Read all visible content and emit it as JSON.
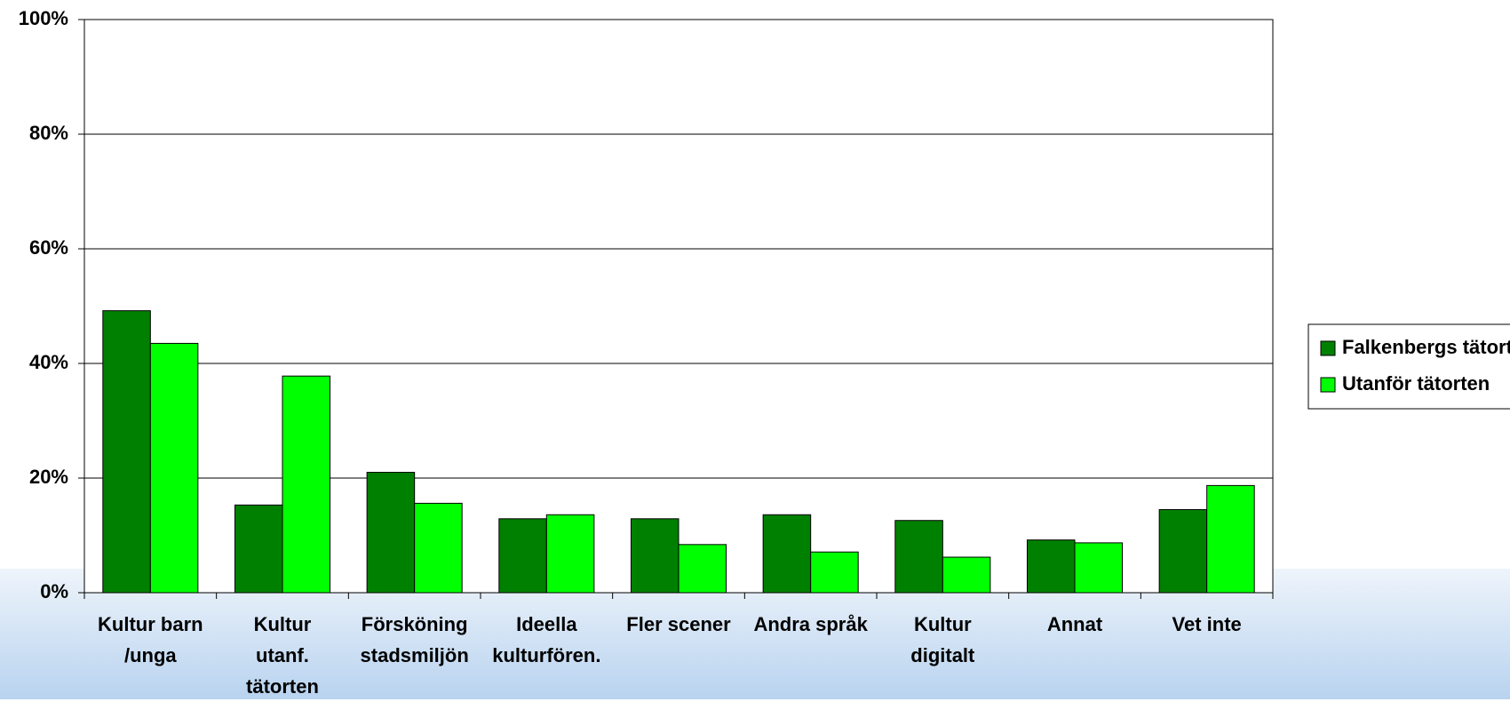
{
  "chart_data": {
    "type": "bar",
    "categories": [
      "Kultur barn\n/unga",
      "Kultur\nutanf.\ntätorten",
      "Försköning\nstadsmiljön",
      "Ideella\nkulturfören.",
      "Fler scener",
      "Andra språk",
      "Kultur\ndigitalt",
      "Annat",
      "Vet inte"
    ],
    "series": [
      {
        "name": "Falkenbergs tätort",
        "color": "#008000",
        "values": [
          49.2,
          15.3,
          21.0,
          12.9,
          12.9,
          13.6,
          12.6,
          9.2,
          14.5
        ]
      },
      {
        "name": "Utanför tätorten",
        "color": "#00ff00",
        "values": [
          43.5,
          37.8,
          15.6,
          13.6,
          8.4,
          7.1,
          6.2,
          8.7,
          18.7
        ]
      }
    ],
    "ylim": [
      0,
      100
    ],
    "yticks": [
      {
        "value": 0,
        "label": "0%"
      },
      {
        "value": 20,
        "label": "20%"
      },
      {
        "value": 40,
        "label": "40%"
      },
      {
        "value": 60,
        "label": "60%"
      },
      {
        "value": 80,
        "label": "80%"
      },
      {
        "value": 100,
        "label": "100%"
      }
    ],
    "grid": true,
    "legend": "right"
  }
}
